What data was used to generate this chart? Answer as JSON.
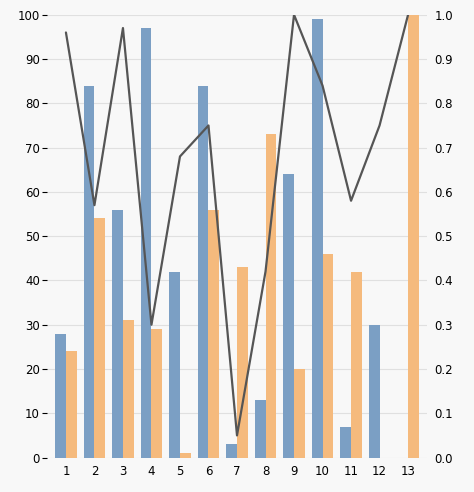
{
  "categories": [
    1,
    2,
    3,
    4,
    5,
    6,
    7,
    8,
    9,
    10,
    11,
    12,
    13
  ],
  "blue_bars": [
    28,
    84,
    56,
    97,
    42,
    84,
    3,
    13,
    64,
    99,
    7,
    30,
    0
  ],
  "orange_bars": [
    24,
    54,
    31,
    29,
    1,
    56,
    43,
    73,
    20,
    46,
    42,
    0,
    100
  ],
  "line_values": [
    0.96,
    0.57,
    0.97,
    0.3,
    0.68,
    0.75,
    0.05,
    0.42,
    1.0,
    0.84,
    0.58,
    0.75,
    1.0
  ],
  "bar_width": 0.38,
  "blue_color": "#7b9fc4",
  "orange_color": "#f5ba7d",
  "line_color": "#555555",
  "left_ylim": [
    0,
    100
  ],
  "right_ylim": [
    0.0,
    1.0
  ],
  "left_yticks": [
    0,
    10,
    20,
    30,
    40,
    50,
    60,
    70,
    80,
    90,
    100
  ],
  "right_yticks": [
    0.0,
    0.1,
    0.2,
    0.3,
    0.4,
    0.5,
    0.6,
    0.7,
    0.8,
    0.9,
    1.0
  ],
  "background_color": "#f8f8f8",
  "grid_color": "#e0e0e0",
  "tick_fontsize": 8.5,
  "line_width": 1.6
}
